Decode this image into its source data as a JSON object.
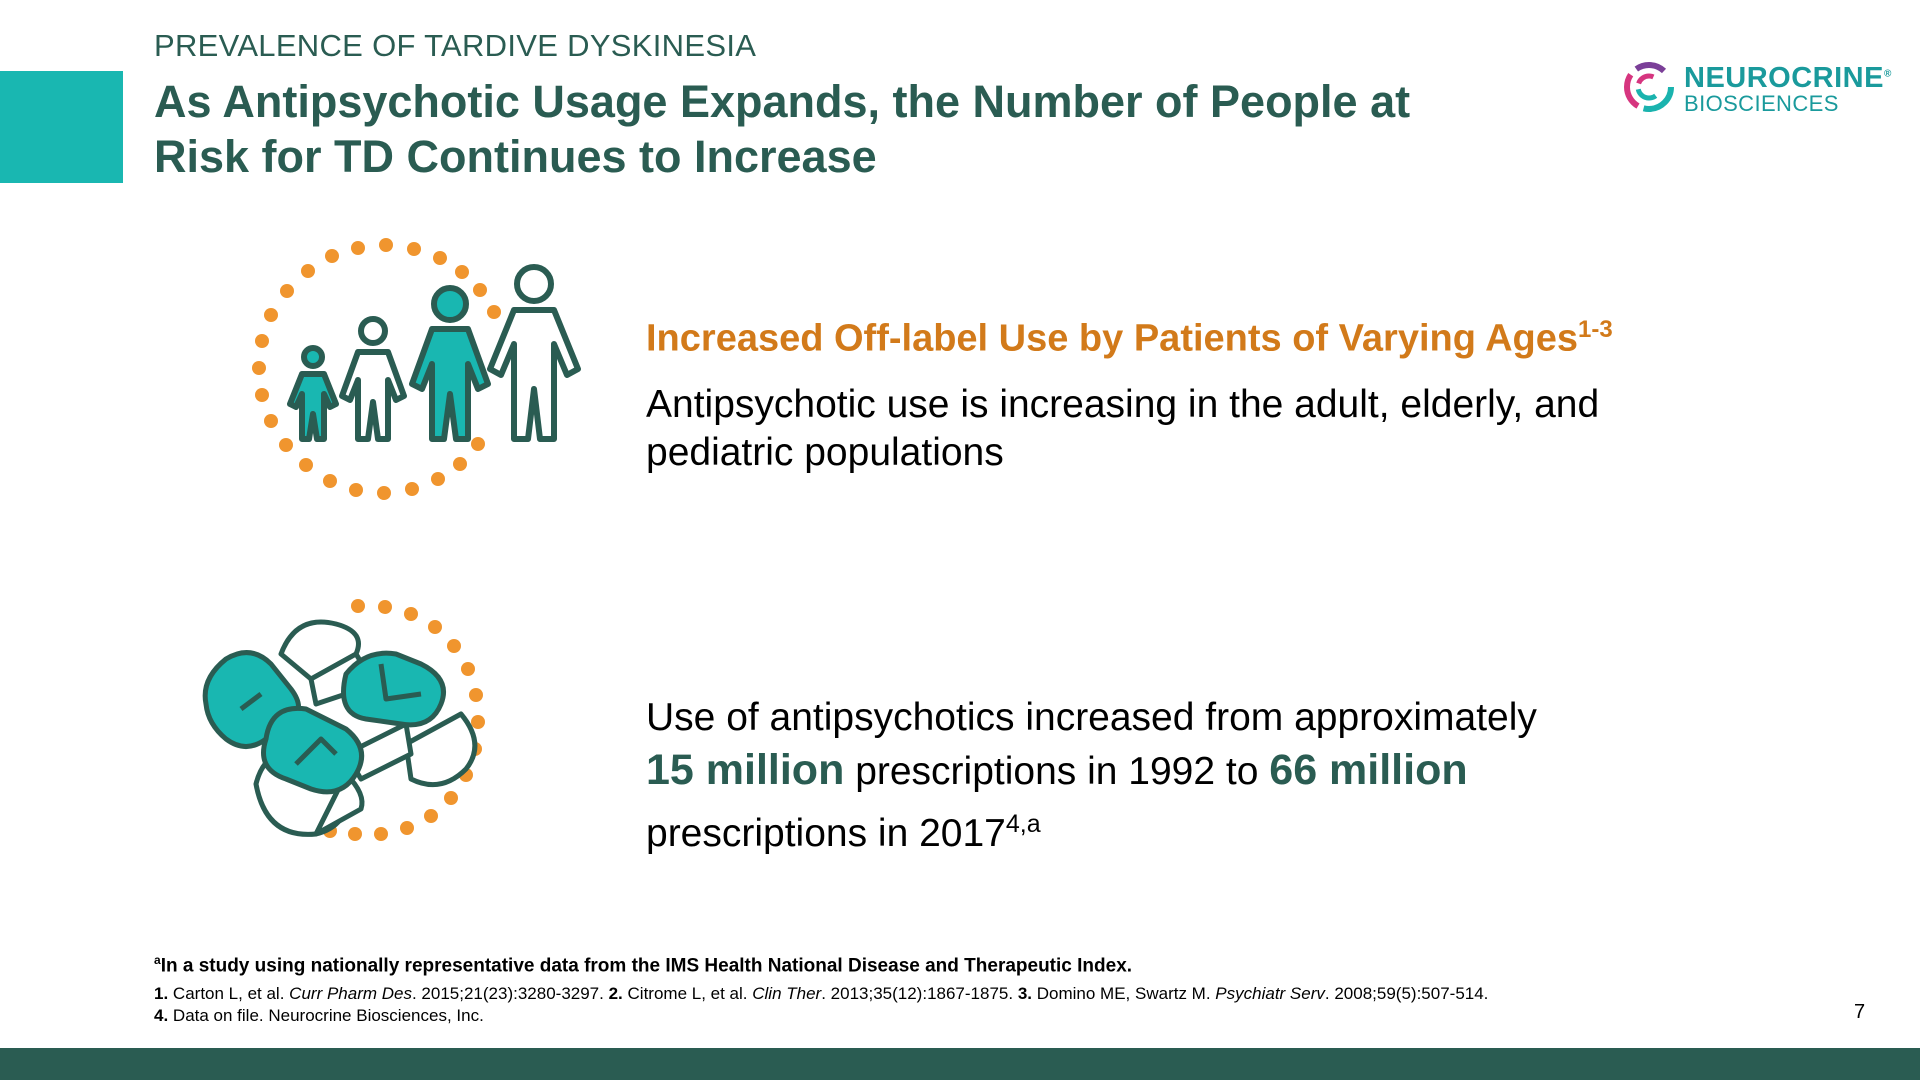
{
  "header": {
    "eyebrow": "PREVALENCE OF TARDIVE DYSKINESIA",
    "title_line1": "As Antipsychotic Usage Expands, the Number of People at",
    "title_line2": "Risk for TD Continues to Increase"
  },
  "logo": {
    "name": "NEUROCRINE",
    "trademark": "®",
    "sub": "BIOSCIENCES"
  },
  "section1": {
    "icon": "family-people-icon",
    "heading": "Increased Off-label Use by Patients of Varying Ages",
    "heading_ref": "1-3",
    "body": "Antipsychotic use is increasing in the adult, elderly, and pediatric populations"
  },
  "section2": {
    "icon": "pills-capsules-icon",
    "text_before": "Use of antipsychotics increased from approximately",
    "stat1": "15 million",
    "text_mid": "prescriptions in 1992 to",
    "stat2": "66 million",
    "text_after": "prescriptions in 2017",
    "ref": "4,a"
  },
  "footnotes": {
    "note_marker": "a",
    "note": "In a study using nationally representative data from the IMS Health National Disease and Therapeutic Index.",
    "r1_num": "1.",
    "r1_a": "Carton L, et al.",
    "r1_journal": "Curr Pharm Des",
    "r1_b": ". 2015;21(23):3280-3297.",
    "r2_num": "2.",
    "r2_a": "Citrome L, et al.",
    "r2_journal": "Clin Ther",
    "r2_b": ". 2013;35(12):1867-1875.",
    "r3_num": "3.",
    "r3_a": "Domino ME, Swartz M.",
    "r3_journal": "Psychiatr Serv",
    "r3_b": ". 2008;59(5):507-514.",
    "r4_num": "4.",
    "r4_a": "Data on file. Neurocrine Biosciences, Inc."
  },
  "page_number": "7",
  "colors": {
    "teal": "#19b7b1",
    "dark_green": "#2a5c52",
    "orange": "#d27a1a",
    "dot_orange": "#f0952e"
  }
}
